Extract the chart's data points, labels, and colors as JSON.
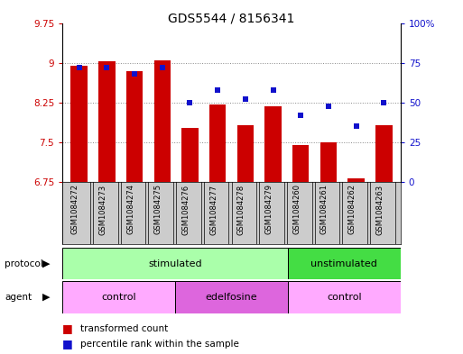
{
  "title": "GDS5544 / 8156341",
  "samples": [
    "GSM1084272",
    "GSM1084273",
    "GSM1084274",
    "GSM1084275",
    "GSM1084276",
    "GSM1084277",
    "GSM1084278",
    "GSM1084279",
    "GSM1084260",
    "GSM1084261",
    "GSM1084262",
    "GSM1084263"
  ],
  "transformed_count": [
    8.95,
    9.03,
    8.85,
    9.05,
    7.78,
    8.22,
    7.82,
    8.18,
    7.45,
    7.5,
    6.82,
    7.82
  ],
  "percentile_rank": [
    72,
    72,
    68,
    72,
    50,
    58,
    52,
    58,
    42,
    48,
    35,
    50
  ],
  "ylim_left": [
    6.75,
    9.75
  ],
  "ylim_right": [
    0,
    100
  ],
  "yticks_left": [
    6.75,
    7.5,
    8.25,
    9.0,
    9.75
  ],
  "yticks_right": [
    0,
    25,
    50,
    75,
    100
  ],
  "ytick_labels_left": [
    "6.75",
    "7.5",
    "8.25",
    "9",
    "9.75"
  ],
  "ytick_labels_right": [
    "0",
    "25",
    "50",
    "75",
    "100%"
  ],
  "bar_color": "#cc0000",
  "dot_color": "#1111cc",
  "bar_bottom": 6.75,
  "protocol_groups": [
    {
      "label": "stimulated",
      "start": 0,
      "end": 8,
      "color": "#aaffaa"
    },
    {
      "label": "unstimulated",
      "start": 8,
      "end": 12,
      "color": "#44dd44"
    }
  ],
  "agent_groups": [
    {
      "label": "control",
      "start": 0,
      "end": 4,
      "color": "#ffaaff"
    },
    {
      "label": "edelfosine",
      "start": 4,
      "end": 8,
      "color": "#dd66dd"
    },
    {
      "label": "control",
      "start": 8,
      "end": 12,
      "color": "#ffaaff"
    }
  ],
  "legend_bar_label": "transformed count",
  "legend_dot_label": "percentile rank within the sample",
  "grid_color": "#888888",
  "background_color": "#ffffff",
  "title_fontsize": 10,
  "tick_fontsize": 7.5,
  "sample_fontsize": 6,
  "row_fontsize": 8
}
